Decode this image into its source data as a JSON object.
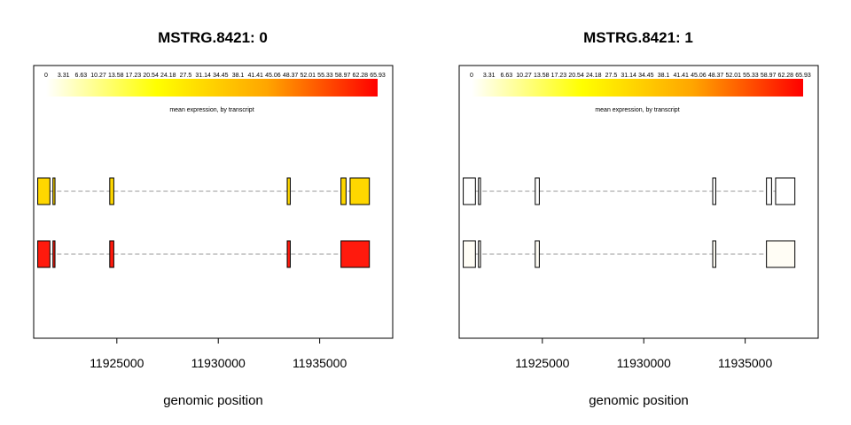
{
  "chart_data": [
    {
      "type": "gene-structure",
      "title": "MSTRG.8421: 0",
      "xlabel": "genomic position",
      "x_ticks": [
        11925000,
        11930000,
        11935000
      ],
      "xlim": [
        11920900,
        11938600
      ],
      "legend": {
        "caption": "mean expression, by transcript",
        "labels": [
          "0",
          "3.31",
          "6.63",
          "10.27",
          "13.58",
          "17.23",
          "20.54",
          "24.18",
          "27.5",
          "31.14",
          "34.45",
          "38.1",
          "41.41",
          "45.06",
          "48.37",
          "52.01",
          "55.33",
          "58.97",
          "62.28",
          "65.93"
        ],
        "colors": [
          "#ffffff",
          "#ffff00",
          "#ffa500",
          "#ff0000"
        ]
      },
      "transcripts": [
        {
          "color": "#ffd700",
          "line": [
            11921700,
            11936800
          ],
          "exons": [
            [
              11921100,
              11921700
            ],
            [
              11921850,
              11921950
            ],
            [
              11924650,
              11924850
            ],
            [
              11933400,
              11933550
            ],
            [
              11936050,
              11936300
            ],
            [
              11936500,
              11937450
            ]
          ]
        },
        {
          "color": "#ff1a0d",
          "line": [
            11921700,
            11936800
          ],
          "exons": [
            [
              11921100,
              11921700
            ],
            [
              11921850,
              11921950
            ],
            [
              11924650,
              11924850
            ],
            [
              11933400,
              11933550
            ],
            [
              11936050,
              11937450
            ]
          ]
        }
      ]
    },
    {
      "type": "gene-structure",
      "title": "MSTRG.8421: 1",
      "xlabel": "genomic position",
      "x_ticks": [
        11925000,
        11930000,
        11935000
      ],
      "xlim": [
        11920900,
        11938600
      ],
      "legend": {
        "caption": "mean expression, by transcript",
        "labels": [
          "0",
          "3.31",
          "6.63",
          "10.27",
          "13.58",
          "17.23",
          "20.54",
          "24.18",
          "27.5",
          "31.14",
          "34.45",
          "38.1",
          "41.41",
          "45.06",
          "48.37",
          "52.01",
          "55.33",
          "58.97",
          "62.28",
          "65.93"
        ],
        "colors": [
          "#ffffff",
          "#ffff00",
          "#ffa500",
          "#ff0000"
        ]
      },
      "transcripts": [
        {
          "color": "#ffffff",
          "line": [
            11921700,
            11936800
          ],
          "exons": [
            [
              11921100,
              11921700
            ],
            [
              11921850,
              11921950
            ],
            [
              11924650,
              11924850
            ],
            [
              11933400,
              11933550
            ],
            [
              11936050,
              11936300
            ],
            [
              11936500,
              11937450
            ]
          ]
        },
        {
          "color": "#fffdf5",
          "line": [
            11921700,
            11936800
          ],
          "exons": [
            [
              11921100,
              11921700
            ],
            [
              11921850,
              11921950
            ],
            [
              11924650,
              11924850
            ],
            [
              11933400,
              11933550
            ],
            [
              11936050,
              11937450
            ]
          ]
        }
      ]
    }
  ]
}
